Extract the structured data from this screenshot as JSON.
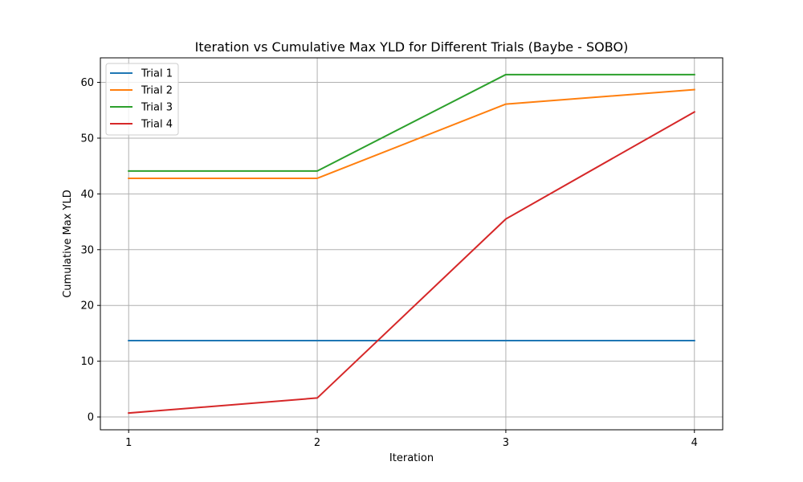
{
  "chart_data": {
    "type": "line",
    "title": "Iteration vs Cumulative Max YLD for Different Trials (Baybe - SOBO)",
    "xlabel": "Iteration",
    "ylabel": "Cumulative Max YLD",
    "x": [
      1,
      2,
      3,
      4
    ],
    "xlim": [
      0.85,
      4.15
    ],
    "ylim": [
      -2.3,
      64.4
    ],
    "xticks": [
      1,
      2,
      3,
      4
    ],
    "yticks": [
      0,
      10,
      20,
      30,
      40,
      50,
      60
    ],
    "grid": true,
    "legend_position": "top-left",
    "series": [
      {
        "name": "Trial 1",
        "color": "#1f77b4",
        "values": [
          13.7,
          13.7,
          13.7,
          13.7
        ]
      },
      {
        "name": "Trial 2",
        "color": "#ff7f0e",
        "values": [
          42.8,
          42.8,
          56.1,
          58.7
        ]
      },
      {
        "name": "Trial 3",
        "color": "#2ca02c",
        "values": [
          44.1,
          44.1,
          61.4,
          61.4
        ]
      },
      {
        "name": "Trial 4",
        "color": "#d62728",
        "values": [
          0.7,
          3.4,
          35.5,
          54.7
        ]
      }
    ]
  }
}
